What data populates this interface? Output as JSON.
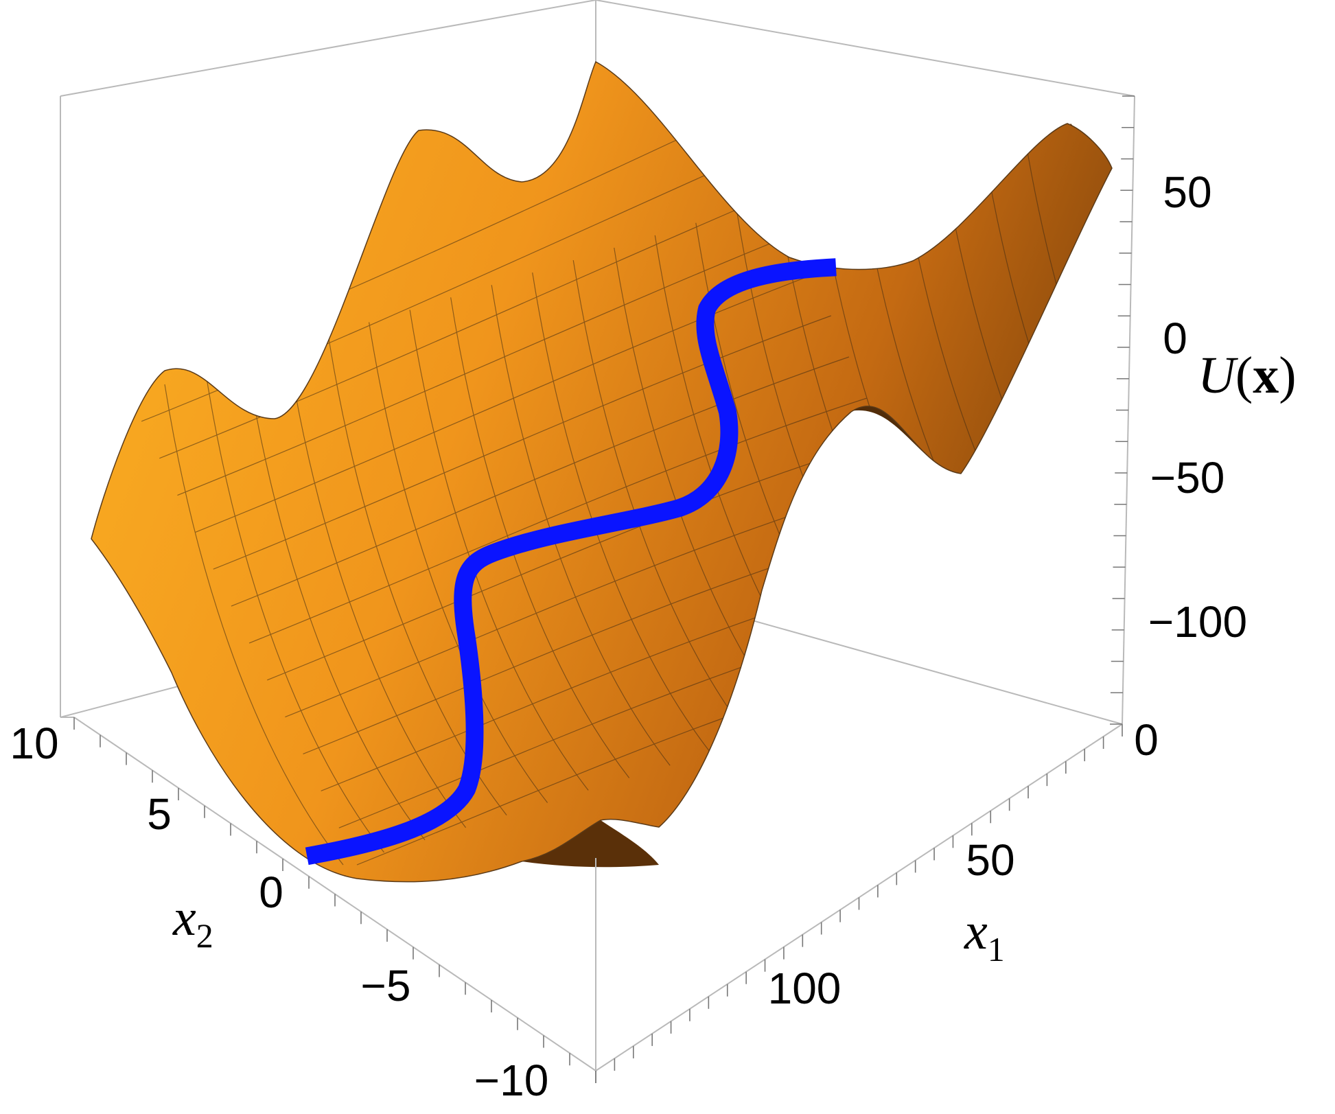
{
  "chart_data": {
    "type": "surface3d",
    "title": "",
    "axes": {
      "x1": {
        "label_base": "x",
        "label_sub": "1",
        "range": [
          0,
          140
        ],
        "ticks": [
          {
            "value": 0,
            "label": "0"
          },
          {
            "value": 50,
            "label": "50"
          },
          {
            "value": 100,
            "label": "100"
          }
        ]
      },
      "x2": {
        "label_base": "x",
        "label_sub": "2",
        "range": [
          -10,
          10
        ],
        "ticks": [
          {
            "value": 10,
            "label": "10"
          },
          {
            "value": 5,
            "label": "5"
          },
          {
            "value": 0,
            "label": "0"
          },
          {
            "value": -5,
            "label": "−5"
          },
          {
            "value": -10,
            "label": "−10"
          }
        ]
      },
      "z": {
        "label_func": "U",
        "label_open": "(",
        "label_var": "x",
        "label_close": ")",
        "ticks": [
          {
            "value": 50,
            "label": "50"
          },
          {
            "value": 0,
            "label": "0"
          },
          {
            "value": -50,
            "label": "−50"
          },
          {
            "value": -100,
            "label": "−100"
          }
        ]
      }
    },
    "surface": {
      "color": "#f7a21c",
      "mesh": true
    },
    "path": {
      "color": "#0a14ff",
      "description_x1_range": [
        0,
        140
      ]
    },
    "box": true
  }
}
